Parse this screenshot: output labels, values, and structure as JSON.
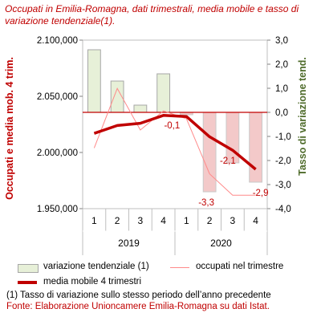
{
  "title": "Occupati in Emilia-Romagna, dati trimestrali, media mobile e tasso di variazione tendenziale(1).",
  "chart_data": {
    "type": "bar+line",
    "quarters": [
      "1",
      "2",
      "3",
      "4",
      "1",
      "2",
      "3",
      "4"
    ],
    "years": [
      {
        "label": "2019",
        "span": 4
      },
      {
        "label": "2020",
        "span": 4
      }
    ],
    "left_axis": {
      "label": "Occupati e media mob. 4 trim.",
      "range": [
        1950000,
        2100000
      ],
      "ticks": [
        "1.950,000",
        "2.000,000",
        "2.050,000",
        "2.100,000"
      ],
      "tick_values": [
        1950000,
        2000000,
        2050000,
        2100000
      ]
    },
    "right_axis": {
      "label": "Tasso di variazione tend.",
      "range": [
        -4.0,
        3.0
      ],
      "ticks": [
        "-4,0",
        "-3,0",
        "-2,0",
        "-1,0",
        "0,0",
        "1,0",
        "2,0",
        "3,0"
      ],
      "tick_values": [
        -4,
        -3,
        -2,
        -1,
        0,
        1,
        2,
        3
      ]
    },
    "series": [
      {
        "name": "variazione tendenziale (1)",
        "kind": "bar",
        "axis": "right",
        "values": [
          2.6,
          1.3,
          0.3,
          1.6,
          -0.1,
          -3.3,
          -2.1,
          -2.9
        ]
      },
      {
        "name": "occupati nel trimestre",
        "kind": "line",
        "axis": "left",
        "values": [
          2004000,
          2057000,
          2020000,
          2037000,
          2030000,
          1981000,
          1962000,
          1962000
        ]
      },
      {
        "name": "media mobile 4 trimestri",
        "kind": "line",
        "axis": "left",
        "values": [
          2017000,
          2024000,
          2026000,
          2033000,
          2032000,
          2014000,
          2002000,
          1985000
        ]
      }
    ],
    "data_labels": [
      "-0,1",
      "-3,3",
      "-2,1",
      "-2,9"
    ],
    "colors": {
      "bar_pos_fill": "#e7f0d8",
      "bar_pos_stroke": "#a6a6a6",
      "bar_neg_fill": "#f3c9c9",
      "bar_neg_stroke": "#c9c9c9",
      "occupati_line": "#ff8a8a",
      "media_line": "#c00000",
      "zero_line": "#c00000",
      "left_label": "#c00000",
      "right_label": "#4e6b2a"
    }
  },
  "legend": {
    "bar_label": "variazione tendenziale (1)",
    "thin_line_label": "occupati nel trimestre",
    "thick_line_label": "media mobile 4 trimestri"
  },
  "footnote": "(1) Tasso di variazione sullo stesso periodo dell’anno precedente",
  "source": "Fonte: Elaborazione Unioncamere Emilia-Romagna su dati Istat."
}
